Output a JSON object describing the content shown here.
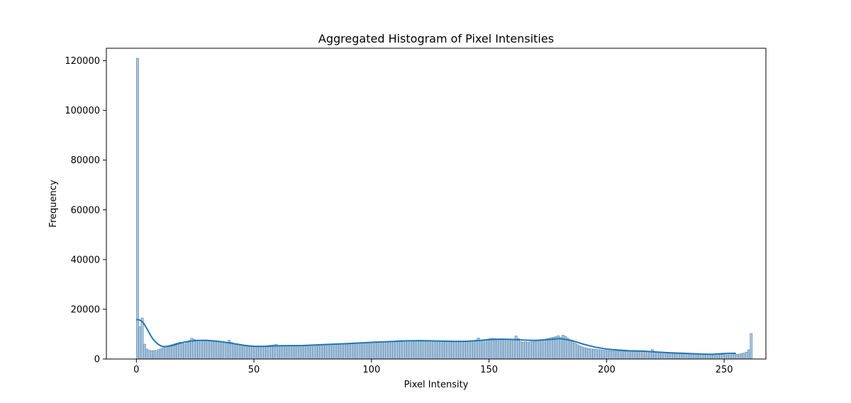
{
  "chart_data": {
    "type": "bar",
    "title": "Aggregated Histogram of Pixel Intensities",
    "xlabel": "Pixel Intensity",
    "ylabel": "Frequency",
    "xlim": [
      -12.75,
      267.75
    ],
    "ylim": [
      0,
      125000
    ],
    "xticks": [
      0,
      50,
      100,
      150,
      200,
      250
    ],
    "yticks": [
      0,
      20000,
      40000,
      60000,
      80000,
      100000,
      120000
    ],
    "grid": false,
    "bin_width": 1,
    "bars": {
      "x_start": 0,
      "values": [
        121000,
        13000,
        16500,
        6000,
        4000,
        3500,
        3400,
        3400,
        3500,
        3800,
        4100,
        4600,
        5000,
        5300,
        5600,
        5900,
        6200,
        6500,
        6800,
        6400,
        6100,
        6700,
        7400,
        8400,
        8000,
        7600,
        7400,
        7500,
        7600,
        7700,
        7500,
        7400,
        7300,
        7200,
        7100,
        7000,
        6900,
        6800,
        6700,
        7600,
        6700,
        6300,
        6100,
        5800,
        5600,
        5400,
        5200,
        5100,
        5000,
        4900,
        4900,
        5000,
        5100,
        5200,
        5300,
        5400,
        5500,
        5600,
        5700,
        5900,
        5300,
        5300,
        5400,
        5300,
        5300,
        5300,
        5400,
        5400,
        5400,
        5500,
        5500,
        5500,
        5600,
        5600,
        5700,
        5700,
        5700,
        5800,
        5800,
        5900,
        5900,
        5900,
        6000,
        6000,
        6000,
        6100,
        6100,
        6200,
        6200,
        6200,
        6300,
        6300,
        6400,
        6400,
        6500,
        6500,
        6600,
        6600,
        6700,
        6700,
        6800,
        6900,
        6800,
        6900,
        7000,
        6900,
        7000,
        7100,
        7100,
        7200,
        7300,
        7400,
        7500,
        7500,
        7400,
        7500,
        7400,
        7500,
        7400,
        7500,
        7600,
        7500,
        7400,
        7300,
        7400,
        7300,
        7300,
        7200,
        7300,
        7200,
        7200,
        7200,
        7100,
        7200,
        7100,
        7100,
        7100,
        7100,
        7100,
        7200,
        7200,
        7300,
        7400,
        7500,
        7700,
        8500,
        7600,
        7700,
        7800,
        8000,
        8200,
        8300,
        8200,
        8100,
        8000,
        8000,
        7900,
        7900,
        7800,
        7700,
        7600,
        9300,
        8200,
        7000,
        6800,
        6900,
        6700,
        6900,
        7000,
        7100,
        7300,
        7500,
        7700,
        7900,
        8100,
        8300,
        8600,
        8800,
        9000,
        9400,
        8700,
        9600,
        9100,
        8400,
        7600,
        7000,
        6400,
        5800,
        5300,
        4900,
        4600,
        4400,
        4200,
        4100,
        4000,
        3900,
        3800,
        3700,
        3600,
        3500,
        3400,
        3400,
        3300,
        3300,
        3200,
        3200,
        3200,
        3100,
        3100,
        3100,
        3100,
        3000,
        3000,
        3000,
        3000,
        3000,
        3000,
        3000,
        3000,
        3800,
        3000,
        2900,
        2800,
        2700,
        2600,
        2500,
        2400,
        2300,
        2200,
        2200,
        2100,
        2100,
        2100,
        2100,
        2100,
        2000,
        2000,
        2000,
        2000,
        2000,
        2000,
        1900,
        1900,
        1900,
        1900,
        1900,
        1800,
        1800,
        1800,
        1800,
        1700,
        1700,
        1700,
        1800,
        1800,
        1900,
        2000,
        2200,
        2400,
        2800,
        3700,
        10300
      ]
    },
    "kde": {
      "x": [
        0,
        1,
        2,
        3,
        4,
        5,
        6,
        7,
        8,
        9,
        10,
        11,
        12,
        14,
        16,
        18,
        20,
        23,
        26,
        30,
        34,
        38,
        42,
        46,
        50,
        55,
        60,
        65,
        70,
        80,
        90,
        100,
        110,
        115,
        120,
        125,
        130,
        135,
        140,
        145,
        150,
        155,
        160,
        165,
        170,
        175,
        180,
        185,
        190,
        195,
        200,
        205,
        210,
        215,
        220,
        225,
        230,
        235,
        240,
        245,
        250,
        253,
        255
      ],
      "y": [
        15800,
        15800,
        15400,
        14500,
        13000,
        11300,
        9600,
        8100,
        7000,
        6100,
        5500,
        5100,
        5000,
        5200,
        5600,
        6200,
        6700,
        7200,
        7500,
        7500,
        7200,
        6700,
        6100,
        5500,
        5100,
        5100,
        5300,
        5400,
        5400,
        5800,
        6200,
        6700,
        7100,
        7300,
        7400,
        7300,
        7200,
        7100,
        7100,
        7400,
        7800,
        8000,
        7900,
        7600,
        7500,
        7800,
        8200,
        7500,
        6000,
        4800,
        4000,
        3600,
        3300,
        3200,
        2900,
        2600,
        2400,
        2200,
        2000,
        1900,
        2200,
        2300,
        2300
      ]
    },
    "colors": {
      "bar_fill": "#aac4dc",
      "bar_edge": "#4d7fa8",
      "kde_line": "#1f77b4"
    }
  }
}
